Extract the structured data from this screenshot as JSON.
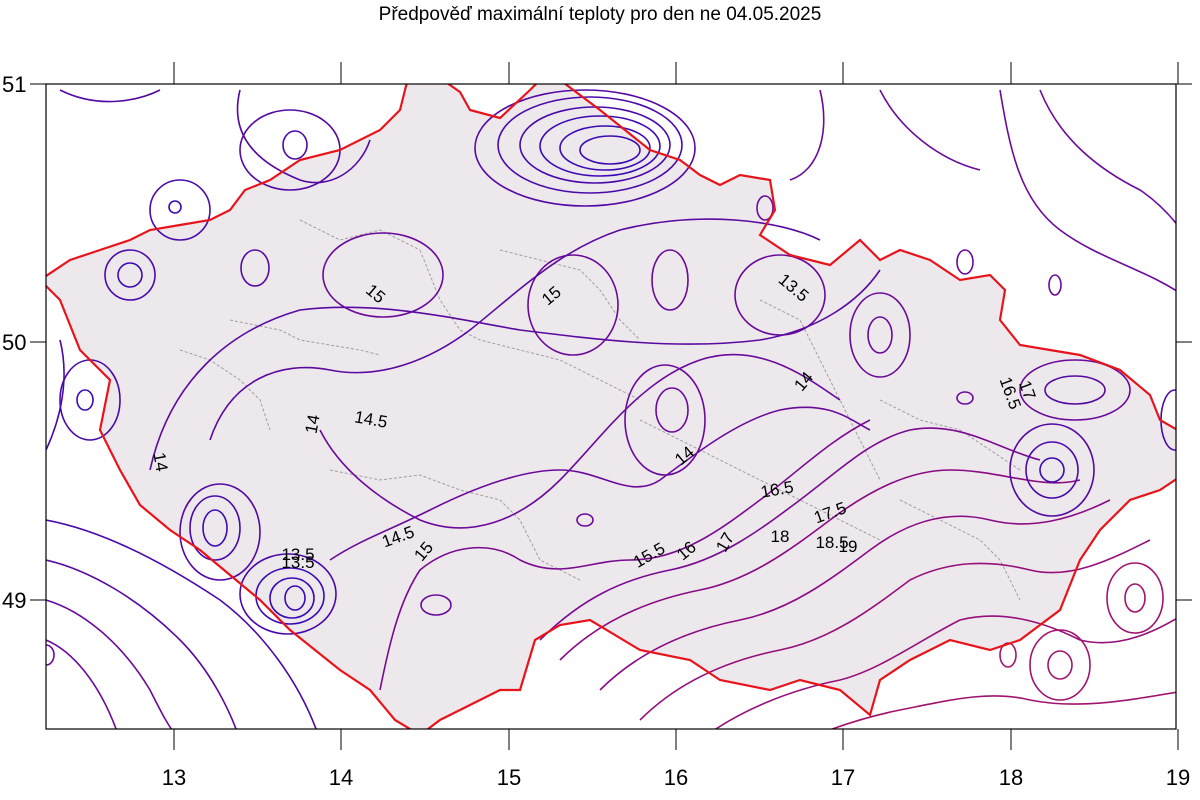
{
  "title": "Předpověď maximální teploty pro den ne 04.05.2025",
  "colors": {
    "land": "#ece8ec",
    "border": "#e8141c",
    "region_border": "#a0a0a0",
    "contour_cold": "#3c0ab4",
    "contour_mid": "#6a0a9a",
    "contour_warm": "#a0146e",
    "frame": "#000000"
  },
  "x_ticks": [
    "13",
    "14",
    "15",
    "16",
    "17",
    "18",
    "19"
  ],
  "y_ticks": [
    "51",
    "50",
    "49"
  ],
  "contour_labels": [
    "15",
    "15",
    "13.5",
    "14",
    "16.5",
    "17",
    "14",
    "14.5",
    "14",
    "14",
    "16.5",
    "17.5",
    "18",
    "18.5",
    "19",
    "17",
    "16",
    "15.5",
    "14.5",
    "15",
    "13.5",
    "13.5"
  ]
}
